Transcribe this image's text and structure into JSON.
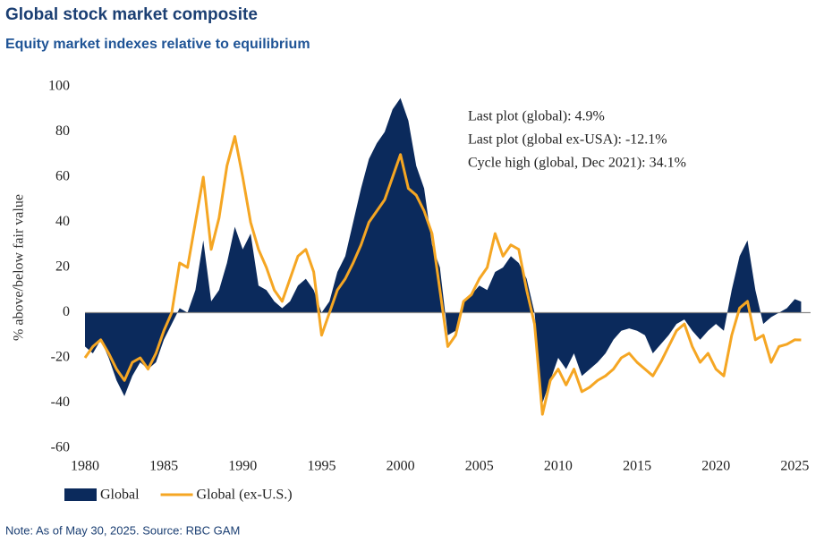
{
  "chart_data": {
    "type": "area-line",
    "title": "Global stock market composite",
    "subtitle": "Equity market indexes relative to equilibrium",
    "y_label": "% above/below fair value",
    "annotations": [
      "Last plot (global): 4.9%",
      "Last plot (global ex-USA): -12.1%",
      "Cycle high (global, Dec 2021): 34.1%"
    ],
    "note": "Note: As of May 30, 2025. Source: RBC GAM",
    "x": [
      1980.0,
      1980.5,
      1981.0,
      1981.5,
      1982.0,
      1982.5,
      1983.0,
      1983.5,
      1984.0,
      1984.5,
      1985.0,
      1985.5,
      1986.0,
      1986.5,
      1987.0,
      1987.5,
      1988.0,
      1988.5,
      1989.0,
      1989.5,
      1990.0,
      1990.5,
      1991.0,
      1991.5,
      1992.0,
      1992.5,
      1993.0,
      1993.5,
      1994.0,
      1994.5,
      1995.0,
      1995.5,
      1996.0,
      1996.5,
      1997.0,
      1997.5,
      1998.0,
      1998.5,
      1999.0,
      1999.5,
      2000.0,
      2000.5,
      2001.0,
      2001.5,
      2002.0,
      2002.5,
      2003.0,
      2003.5,
      2004.0,
      2004.5,
      2005.0,
      2005.5,
      2006.0,
      2006.5,
      2007.0,
      2007.5,
      2008.0,
      2008.5,
      2009.0,
      2009.5,
      2010.0,
      2010.5,
      2011.0,
      2011.5,
      2012.0,
      2012.5,
      2013.0,
      2013.5,
      2014.0,
      2014.5,
      2015.0,
      2015.5,
      2016.0,
      2016.5,
      2017.0,
      2017.5,
      2018.0,
      2018.5,
      2019.0,
      2019.5,
      2020.0,
      2020.5,
      2021.0,
      2021.5,
      2022.0,
      2022.5,
      2023.0,
      2023.5,
      2024.0,
      2024.5,
      2025.0,
      2025.4
    ],
    "series": [
      {
        "name": "Global",
        "color": "#0b2a5c",
        "kind": "area",
        "values": [
          -15,
          -18,
          -12,
          -20,
          -30,
          -37,
          -28,
          -22,
          -25,
          -22,
          -12,
          -5,
          2,
          0,
          10,
          32,
          5,
          10,
          22,
          38,
          28,
          35,
          12,
          10,
          5,
          2,
          5,
          12,
          15,
          10,
          0,
          5,
          18,
          25,
          40,
          55,
          68,
          75,
          80,
          90,
          95,
          85,
          65,
          55,
          30,
          20,
          -10,
          -8,
          5,
          8,
          12,
          10,
          18,
          20,
          25,
          22,
          15,
          0,
          -40,
          -30,
          -20,
          -25,
          -18,
          -28,
          -25,
          -22,
          -18,
          -12,
          -8,
          -7,
          -8,
          -10,
          -18,
          -14,
          -10,
          -5,
          -3,
          -8,
          -12,
          -8,
          -5,
          -8,
          10,
          25,
          32,
          10,
          -5,
          -2,
          0,
          2,
          6,
          4.9
        ]
      },
      {
        "name": "Global (ex-U.S.)",
        "color": "#f5a623",
        "kind": "line",
        "values": [
          -20,
          -15,
          -12,
          -18,
          -25,
          -30,
          -22,
          -20,
          -25,
          -18,
          -8,
          0,
          22,
          20,
          40,
          60,
          28,
          42,
          65,
          78,
          60,
          40,
          28,
          20,
          10,
          5,
          15,
          25,
          28,
          18,
          -10,
          0,
          10,
          15,
          22,
          30,
          40,
          45,
          50,
          60,
          70,
          55,
          52,
          45,
          35,
          10,
          -15,
          -10,
          5,
          8,
          15,
          20,
          35,
          25,
          30,
          28,
          10,
          -5,
          -45,
          -30,
          -25,
          -32,
          -25,
          -35,
          -33,
          -30,
          -28,
          -25,
          -20,
          -18,
          -22,
          -25,
          -28,
          -22,
          -15,
          -8,
          -5,
          -15,
          -22,
          -18,
          -25,
          -28,
          -10,
          2,
          5,
          -12,
          -10,
          -22,
          -15,
          -14,
          -12,
          -12.1
        ]
      }
    ],
    "xlim": [
      1980,
      2026
    ],
    "xticks": [
      1980,
      1985,
      1990,
      1995,
      2000,
      2005,
      2010,
      2015,
      2020,
      2025
    ],
    "ylim": [
      -60,
      100
    ],
    "yticks": [
      -60,
      -40,
      -20,
      0,
      20,
      40,
      60,
      80,
      100
    ]
  }
}
